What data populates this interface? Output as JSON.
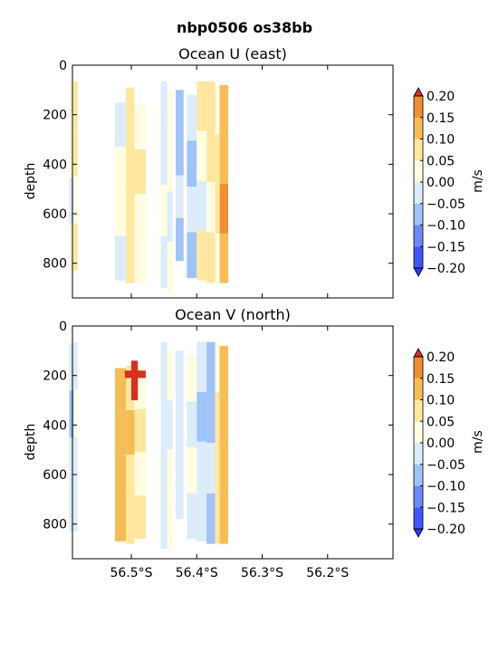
{
  "figure": {
    "suptitle": "nbp0506 os38bb"
  },
  "colors": {
    "levels": [
      -0.2,
      -0.15,
      -0.1,
      -0.05,
      0.0,
      0.05,
      0.1,
      0.15,
      0.2
    ],
    "under": "#2a3bff",
    "bands": [
      "#3f57ff",
      "#6b8af5",
      "#9ec3f7",
      "#dcecfb",
      "#fffde0",
      "#ffe7a0",
      "#f6bd55",
      "#f08f32"
    ],
    "over": "#d7301f"
  },
  "chart_data": [
    {
      "type": "heatmap",
      "title": "Ocean U (east)",
      "ylabel": "depth",
      "xlim": [
        -56.59,
        -56.1
      ],
      "ylim": [
        940,
        0
      ],
      "yticks": [
        0,
        200,
        400,
        600,
        800
      ],
      "xticks": [],
      "colorbar": {
        "label": "m/s",
        "ticks": [
          "0.20",
          "0.15",
          "0.10",
          "0.05",
          "0.00",
          "−0.05",
          "−0.10",
          "−0.15",
          "−0.20"
        ]
      },
      "profiles": [
        {
          "lon_start": -56.595,
          "lon_end": -56.588,
          "depth_top": 80,
          "depth_bottom": 830,
          "pattern": [
            0.04,
            0.02,
            -0.03,
            0.01
          ]
        },
        {
          "lon_start": -56.588,
          "lon_end": -56.582,
          "depth_top": 65,
          "depth_bottom": 830,
          "pattern": [
            0.08,
            0.05,
            0.03,
            0.06
          ]
        },
        {
          "lon_start": -56.525,
          "lon_end": -56.508,
          "depth_top": 150,
          "depth_bottom": 870,
          "pattern": [
            -0.02,
            0.0,
            0.02,
            -0.01
          ]
        },
        {
          "lon_start": -56.508,
          "lon_end": -56.495,
          "depth_top": 90,
          "depth_bottom": 880,
          "pattern": [
            0.09,
            0.06,
            0.08,
            0.07
          ]
        },
        {
          "lon_start": -56.495,
          "lon_end": -56.478,
          "depth_top": 160,
          "depth_bottom": 880,
          "pattern": [
            0.03,
            0.05,
            0.02,
            0.04
          ]
        },
        {
          "lon_start": -56.455,
          "lon_end": -56.445,
          "depth_top": 65,
          "depth_bottom": 900,
          "pattern": [
            -0.05,
            -0.02,
            0.02,
            -0.04
          ]
        },
        {
          "lon_start": -56.445,
          "lon_end": -56.437,
          "depth_top": 100,
          "depth_bottom": 920,
          "pattern": [
            0.04,
            0.0,
            -0.02,
            0.02
          ]
        },
        {
          "lon_start": -56.432,
          "lon_end": -56.42,
          "depth_top": 100,
          "depth_bottom": 790,
          "pattern": [
            -0.06,
            -0.08,
            -0.04,
            -0.07
          ]
        },
        {
          "lon_start": -56.415,
          "lon_end": -56.4,
          "depth_top": 120,
          "depth_bottom": 860,
          "pattern": [
            -0.03,
            -0.09,
            -0.05,
            -0.06
          ]
        },
        {
          "lon_start": -56.4,
          "lon_end": -56.385,
          "depth_top": 65,
          "depth_bottom": 870,
          "pattern": [
            0.06,
            0.02,
            -0.03,
            0.05
          ]
        },
        {
          "lon_start": -56.385,
          "lon_end": -56.372,
          "depth_top": 65,
          "depth_bottom": 880,
          "pattern": [
            0.08,
            0.05,
            0.03,
            0.06
          ]
        },
        {
          "lon_start": -56.372,
          "lon_end": -56.365,
          "depth_top": 80,
          "depth_bottom": 880,
          "pattern": [
            0.02,
            0.06,
            0.08,
            0.04
          ]
        },
        {
          "lon_start": -56.365,
          "lon_end": -56.352,
          "depth_top": 80,
          "depth_bottom": 880,
          "pattern": [
            0.12,
            0.1,
            0.16,
            0.11
          ]
        }
      ]
    },
    {
      "type": "heatmap",
      "title": "Ocean V (north)",
      "ylabel": "depth",
      "xlim": [
        -56.59,
        -56.1
      ],
      "ylim": [
        940,
        0
      ],
      "yticks": [
        0,
        200,
        400,
        600,
        800
      ],
      "xticks": [
        "56.5°S",
        "56.4°S",
        "56.3°S",
        "56.2°S"
      ],
      "xtick_values": [
        -56.5,
        -56.4,
        -56.3,
        -56.2
      ],
      "colorbar": {
        "label": "m/s",
        "ticks": [
          "0.20",
          "0.15",
          "0.10",
          "0.05",
          "0.00",
          "−0.05",
          "−0.10",
          "−0.15",
          "−0.20"
        ]
      },
      "profiles": [
        {
          "lon_start": -56.595,
          "lon_end": -56.588,
          "depth_top": 70,
          "depth_bottom": 830,
          "pattern": [
            -0.04,
            -0.06,
            -0.03,
            -0.05
          ]
        },
        {
          "lon_start": -56.588,
          "lon_end": -56.582,
          "depth_top": 65,
          "depth_bottom": 830,
          "pattern": [
            -0.02,
            0.01,
            -0.03,
            -0.01
          ]
        },
        {
          "lon_start": -56.525,
          "lon_end": -56.508,
          "depth_top": 170,
          "depth_bottom": 870,
          "pattern": [
            0.11,
            0.14,
            0.1,
            0.12
          ]
        },
        {
          "lon_start": -56.508,
          "lon_end": -56.495,
          "depth_top": 160,
          "depth_bottom": 880,
          "pattern": [
            0.07,
            0.1,
            0.09,
            0.08
          ]
        },
        {
          "lon_start": -56.495,
          "lon_end": -56.478,
          "depth_top": 160,
          "depth_bottom": 860,
          "pattern": [
            0.04,
            0.06,
            0.03,
            0.05
          ]
        },
        {
          "lon_start": -56.455,
          "lon_end": -56.445,
          "depth_top": 65,
          "depth_bottom": 900,
          "pattern": [
            -0.04,
            -0.02,
            -0.05,
            -0.03
          ]
        },
        {
          "lon_start": -56.445,
          "lon_end": -56.437,
          "depth_top": 100,
          "depth_bottom": 900,
          "pattern": [
            0.02,
            -0.01,
            0.03,
            0.01
          ]
        },
        {
          "lon_start": -56.432,
          "lon_end": -56.42,
          "depth_top": 100,
          "depth_bottom": 780,
          "pattern": [
            -0.03,
            -0.05,
            -0.02,
            -0.04
          ]
        },
        {
          "lon_start": -56.415,
          "lon_end": -56.4,
          "depth_top": 120,
          "depth_bottom": 860,
          "pattern": [
            0.01,
            -0.03,
            0.0,
            -0.02
          ]
        },
        {
          "lon_start": -56.4,
          "lon_end": -56.385,
          "depth_top": 65,
          "depth_bottom": 870,
          "pattern": [
            -0.03,
            -0.06,
            -0.04,
            -0.02
          ]
        },
        {
          "lon_start": -56.385,
          "lon_end": -56.372,
          "depth_top": 65,
          "depth_bottom": 880,
          "pattern": [
            -0.06,
            -0.08,
            -0.04,
            -0.07
          ]
        },
        {
          "lon_start": -56.372,
          "lon_end": -56.365,
          "depth_top": 65,
          "depth_bottom": 880,
          "pattern": [
            0.04,
            0.07,
            0.05,
            0.06
          ]
        },
        {
          "lon_start": -56.365,
          "lon_end": -56.352,
          "depth_top": 80,
          "depth_bottom": 880,
          "pattern": [
            0.12,
            0.11,
            0.14,
            0.12
          ]
        }
      ],
      "hotspots": [
        {
          "lon_start": -56.51,
          "lon_end": -56.478,
          "depth_top": 180,
          "depth_bottom": 210,
          "value": 0.22
        },
        {
          "lon_start": -56.5,
          "lon_end": -56.49,
          "depth_top": 140,
          "depth_bottom": 300,
          "value": 0.22
        }
      ]
    }
  ]
}
